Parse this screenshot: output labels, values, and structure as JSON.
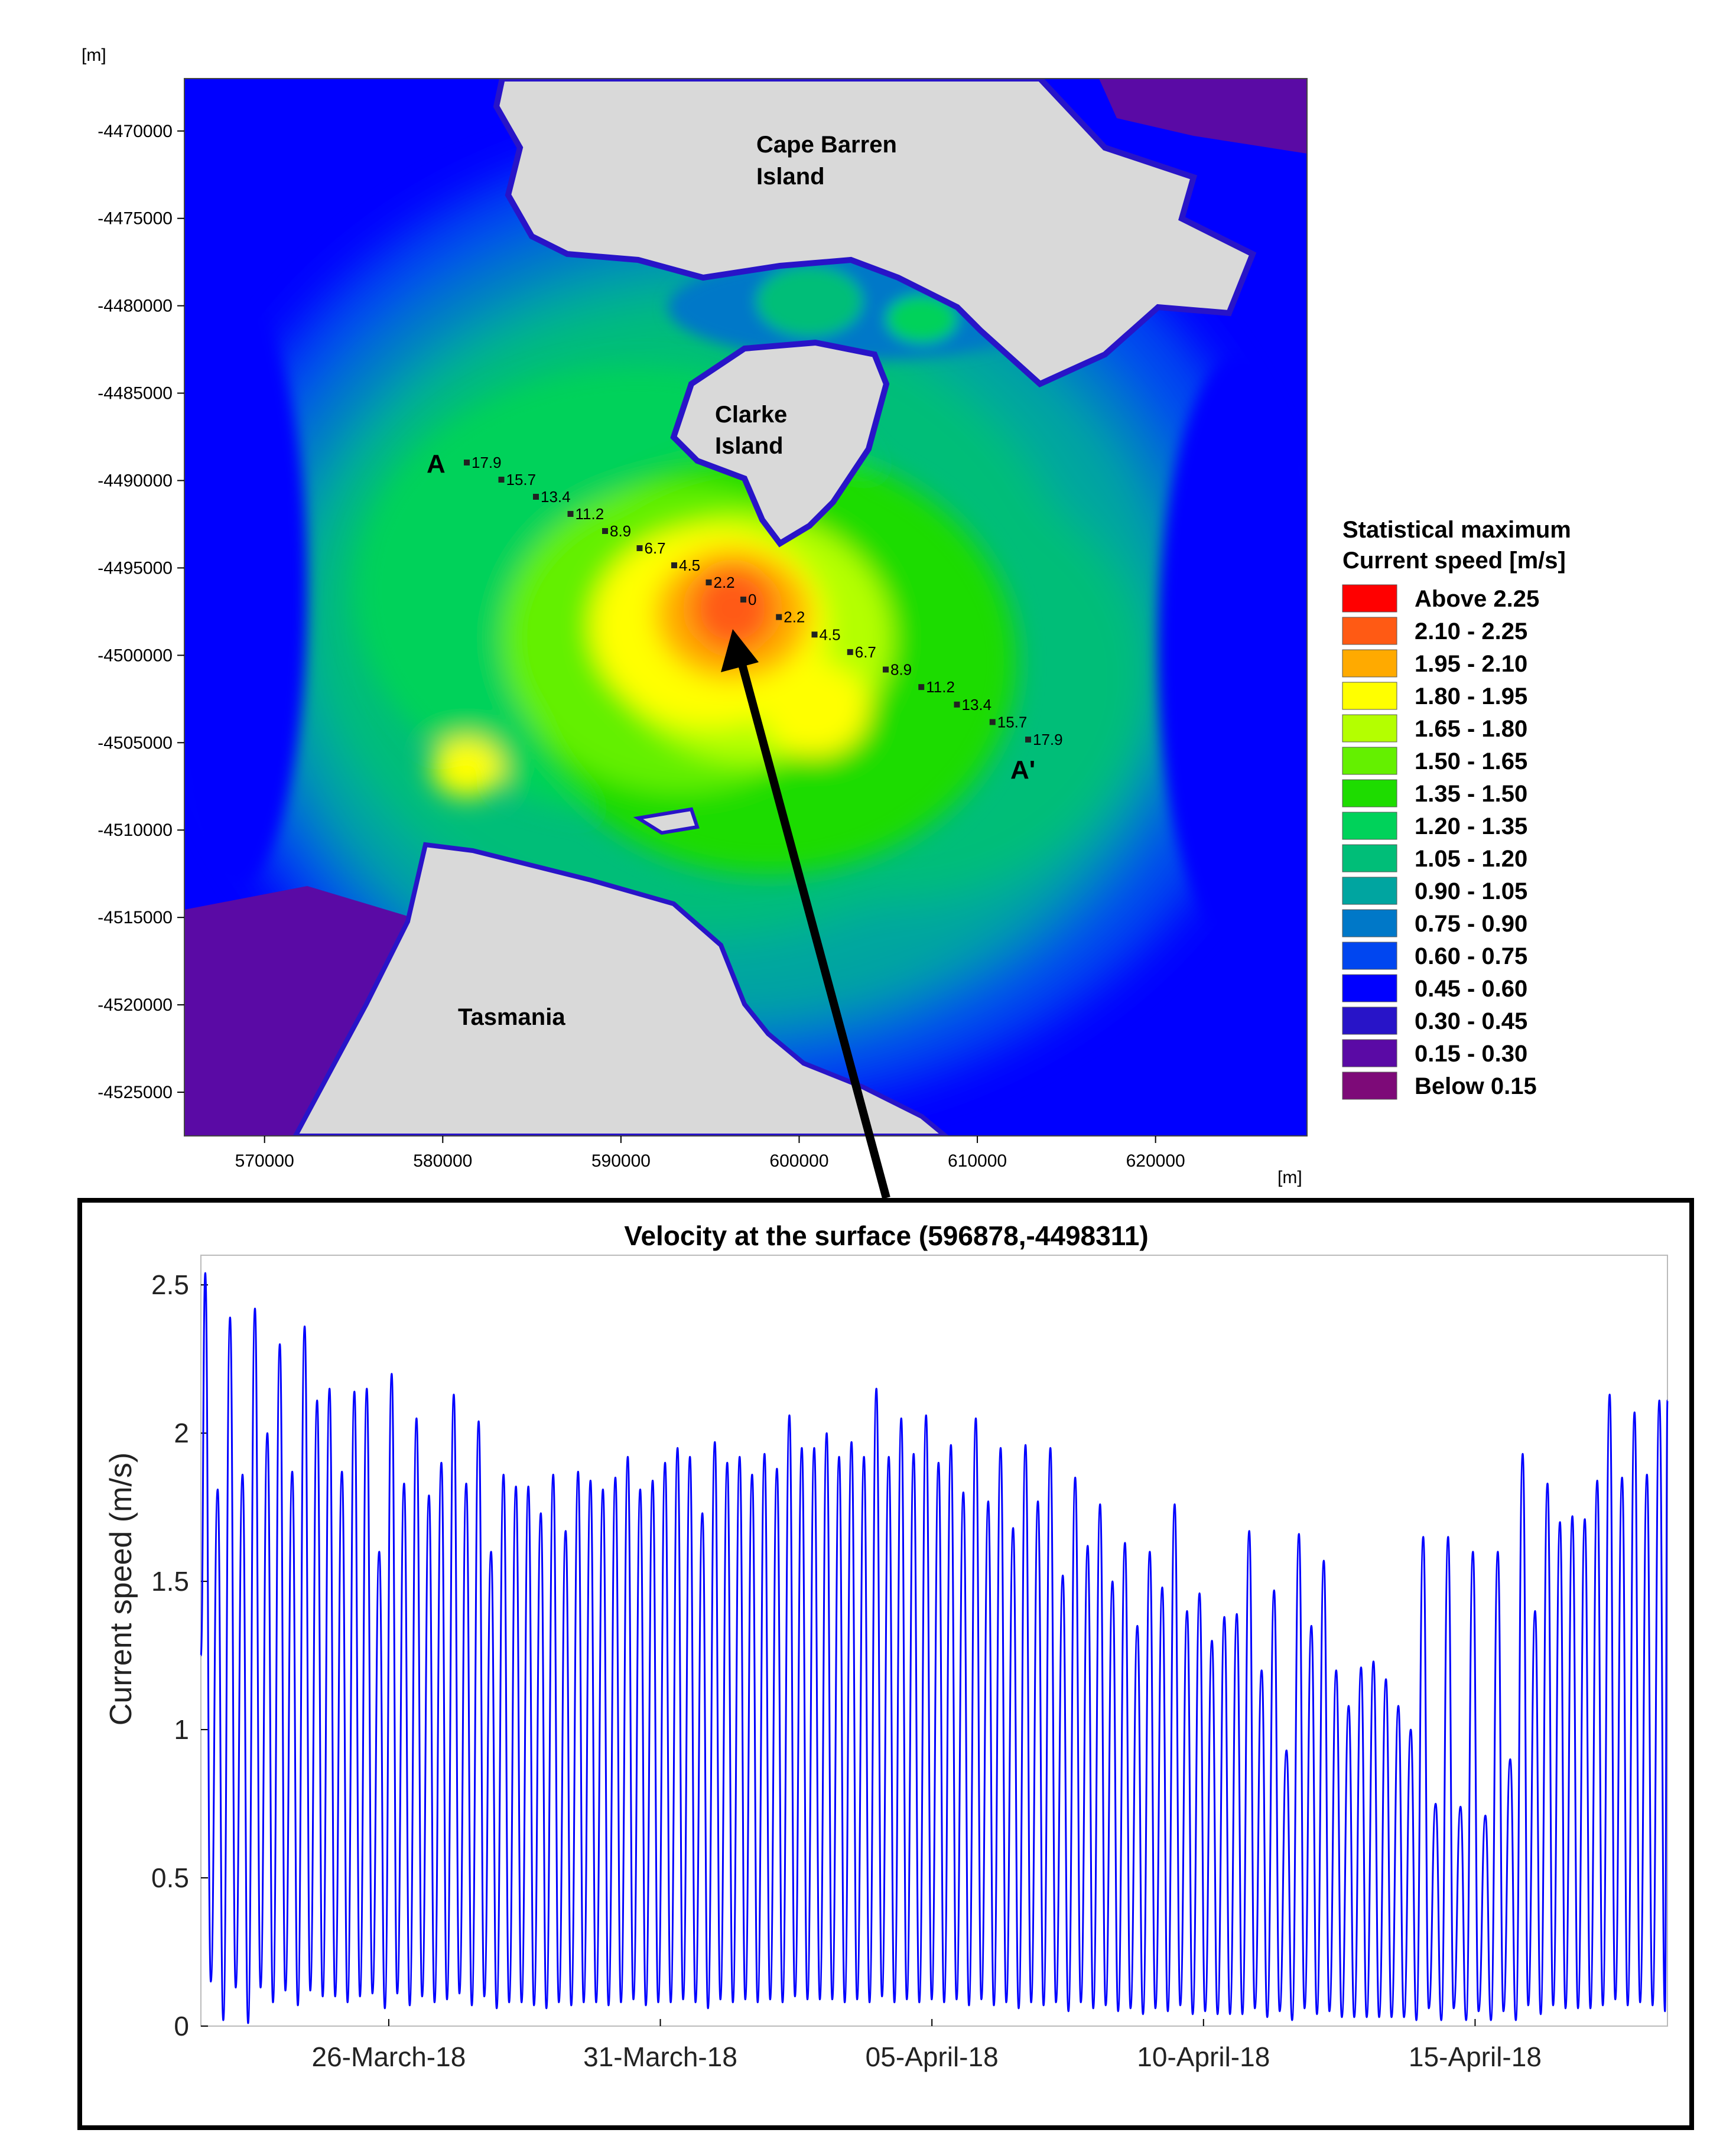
{
  "chart_data": [
    {
      "type": "heatmap",
      "title": "",
      "axis_unit_y": "[m]",
      "axis_unit_x": "[m]",
      "ylim": [
        -4527500,
        -4467000
      ],
      "xlim": [
        565500,
        628500
      ],
      "y_ticks": [
        "-4470000",
        "-4475000",
        "-4480000",
        "-4485000",
        "-4490000",
        "-4495000",
        "-4500000",
        "-4505000",
        "-4510000",
        "-4515000",
        "-4520000",
        "-4525000"
      ],
      "x_ticks": [
        "570000",
        "580000",
        "590000",
        "600000",
        "610000",
        "620000"
      ],
      "place_labels": [
        "Cape Barren",
        "Island",
        "Clarke",
        "Island",
        "Tasmania"
      ],
      "section_labels": [
        "A",
        "A'"
      ],
      "transect_A": [
        "17.9",
        "15.7",
        "13.4",
        "11.2",
        "8.9",
        "6.7",
        "4.5",
        "2.2",
        "0"
      ],
      "transect_B": [
        "2.2",
        "4.5",
        "6.7",
        "8.9",
        "11.2",
        "13.4",
        "15.7",
        "17.9"
      ],
      "legend": {
        "title_line1": "Statistical maximum",
        "title_line2": "Current speed [m/s]",
        "placement": "right",
        "items": [
          {
            "label": "Above 2.25",
            "color": "#ff0000"
          },
          {
            "label": "2.10 - 2.25",
            "color": "#ff5a14"
          },
          {
            "label": "1.95 - 2.10",
            "color": "#ffaa00"
          },
          {
            "label": "1.80 - 1.95",
            "color": "#ffff00"
          },
          {
            "label": "1.65 - 1.80",
            "color": "#b4ff00"
          },
          {
            "label": "1.50 - 1.65",
            "color": "#64f000"
          },
          {
            "label": "1.35 - 1.50",
            "color": "#1edc00"
          },
          {
            "label": "1.20 - 1.35",
            "color": "#00d25a"
          },
          {
            "label": "1.05 - 1.20",
            "color": "#00be78"
          },
          {
            "label": "0.90 - 1.05",
            "color": "#00a5a0"
          },
          {
            "label": "0.75 - 0.90",
            "color": "#0078c8"
          },
          {
            "label": "0.60 - 0.75",
            "color": "#0046f0"
          },
          {
            "label": "0.45 - 0.60",
            "color": "#0000ff"
          },
          {
            "label": "0.30 - 0.45",
            "color": "#2814c8"
          },
          {
            "label": "0.15 - 0.30",
            "color": "#5a0aa5"
          },
          {
            "label": "Below 0.15",
            "color": "#7d0a78"
          }
        ]
      }
    },
    {
      "type": "line",
      "title": "Velocity at the surface (596878,-4498311)",
      "xlabel": "",
      "ylabel": "Current speed (m/s)",
      "ylim": [
        0,
        2.6
      ],
      "y_ticks": [
        "0",
        "0.5",
        "1",
        "1.5",
        "2",
        "2.5"
      ],
      "xlim": [
        "2018-03-22T13:00",
        "2018-04-18T13:00"
      ],
      "x_ticks": [
        {
          "label": "26-March-18",
          "date": "2018-03-26"
        },
        {
          "label": "31-March-18",
          "date": "2018-03-31"
        },
        {
          "label": "05-April-18",
          "date": "2018-04-05"
        },
        {
          "label": "10-April-18",
          "date": "2018-04-10"
        },
        {
          "label": "15-April-18",
          "date": "2018-04-15"
        }
      ],
      "line_color": "#0000ff",
      "start_value": 1.25,
      "series": [
        {
          "peaks": [
            2.54,
            1.81,
            2.39,
            1.86,
            2.42,
            2.0,
            2.3,
            1.87,
            2.36,
            2.11,
            2.15,
            1.87,
            2.14,
            2.15,
            1.6,
            2.2,
            1.83,
            2.05,
            1.79,
            1.9,
            2.13,
            1.83,
            2.04,
            1.6,
            1.86,
            1.82,
            1.82,
            1.73,
            1.86,
            1.67,
            1.87,
            1.84,
            1.81,
            1.85,
            1.92,
            1.81,
            1.84,
            1.9,
            1.95,
            1.92,
            1.73,
            1.97,
            1.9,
            1.92,
            1.86,
            1.93,
            1.88,
            2.06,
            1.95,
            1.95,
            2.0,
            1.92,
            1.97,
            1.92,
            2.15,
            1.92,
            2.05,
            1.93,
            2.06,
            1.9,
            1.96,
            1.8,
            2.05,
            1.77,
            1.95,
            1.68,
            1.96,
            1.77,
            1.95,
            1.52,
            1.85,
            1.62,
            1.76,
            1.5,
            1.63,
            1.35,
            1.6,
            1.48,
            1.76,
            1.4,
            1.46,
            1.3,
            1.38,
            1.39,
            1.67,
            1.2,
            1.47,
            0.93,
            1.66,
            1.35,
            1.57,
            1.2,
            1.08,
            1.21,
            1.23,
            1.17,
            1.08,
            1.0,
            1.65,
            0.75,
            1.65,
            0.74,
            1.6,
            0.71,
            1.6,
            0.9,
            1.93,
            1.4,
            1.83,
            1.7,
            1.72,
            1.71,
            1.84,
            2.13,
            1.85,
            2.07,
            1.86,
            2.11
          ],
          "troughs": [
            0.15,
            0.02,
            0.13,
            0.01,
            0.13,
            0.08,
            0.12,
            0.07,
            0.12,
            0.1,
            0.1,
            0.08,
            0.1,
            0.11,
            0.06,
            0.11,
            0.07,
            0.1,
            0.08,
            0.09,
            0.11,
            0.07,
            0.1,
            0.06,
            0.08,
            0.08,
            0.07,
            0.06,
            0.08,
            0.07,
            0.08,
            0.08,
            0.07,
            0.08,
            0.09,
            0.07,
            0.08,
            0.08,
            0.09,
            0.08,
            0.06,
            0.09,
            0.08,
            0.09,
            0.08,
            0.09,
            0.08,
            0.1,
            0.09,
            0.09,
            0.09,
            0.08,
            0.09,
            0.08,
            0.1,
            0.08,
            0.09,
            0.08,
            0.09,
            0.08,
            0.09,
            0.07,
            0.09,
            0.07,
            0.08,
            0.06,
            0.08,
            0.07,
            0.08,
            0.05,
            0.08,
            0.06,
            0.07,
            0.05,
            0.06,
            0.04,
            0.06,
            0.05,
            0.07,
            0.04,
            0.05,
            0.04,
            0.04,
            0.04,
            0.06,
            0.03,
            0.05,
            0.02,
            0.06,
            0.04,
            0.05,
            0.03,
            0.03,
            0.03,
            0.03,
            0.03,
            0.03,
            0.02,
            0.06,
            0.02,
            0.06,
            0.02,
            0.05,
            0.02,
            0.05,
            0.02,
            0.07,
            0.04,
            0.07,
            0.06,
            0.06,
            0.06,
            0.07,
            0.09,
            0.07,
            0.08,
            0.07,
            0.05
          ]
        }
      ]
    }
  ]
}
